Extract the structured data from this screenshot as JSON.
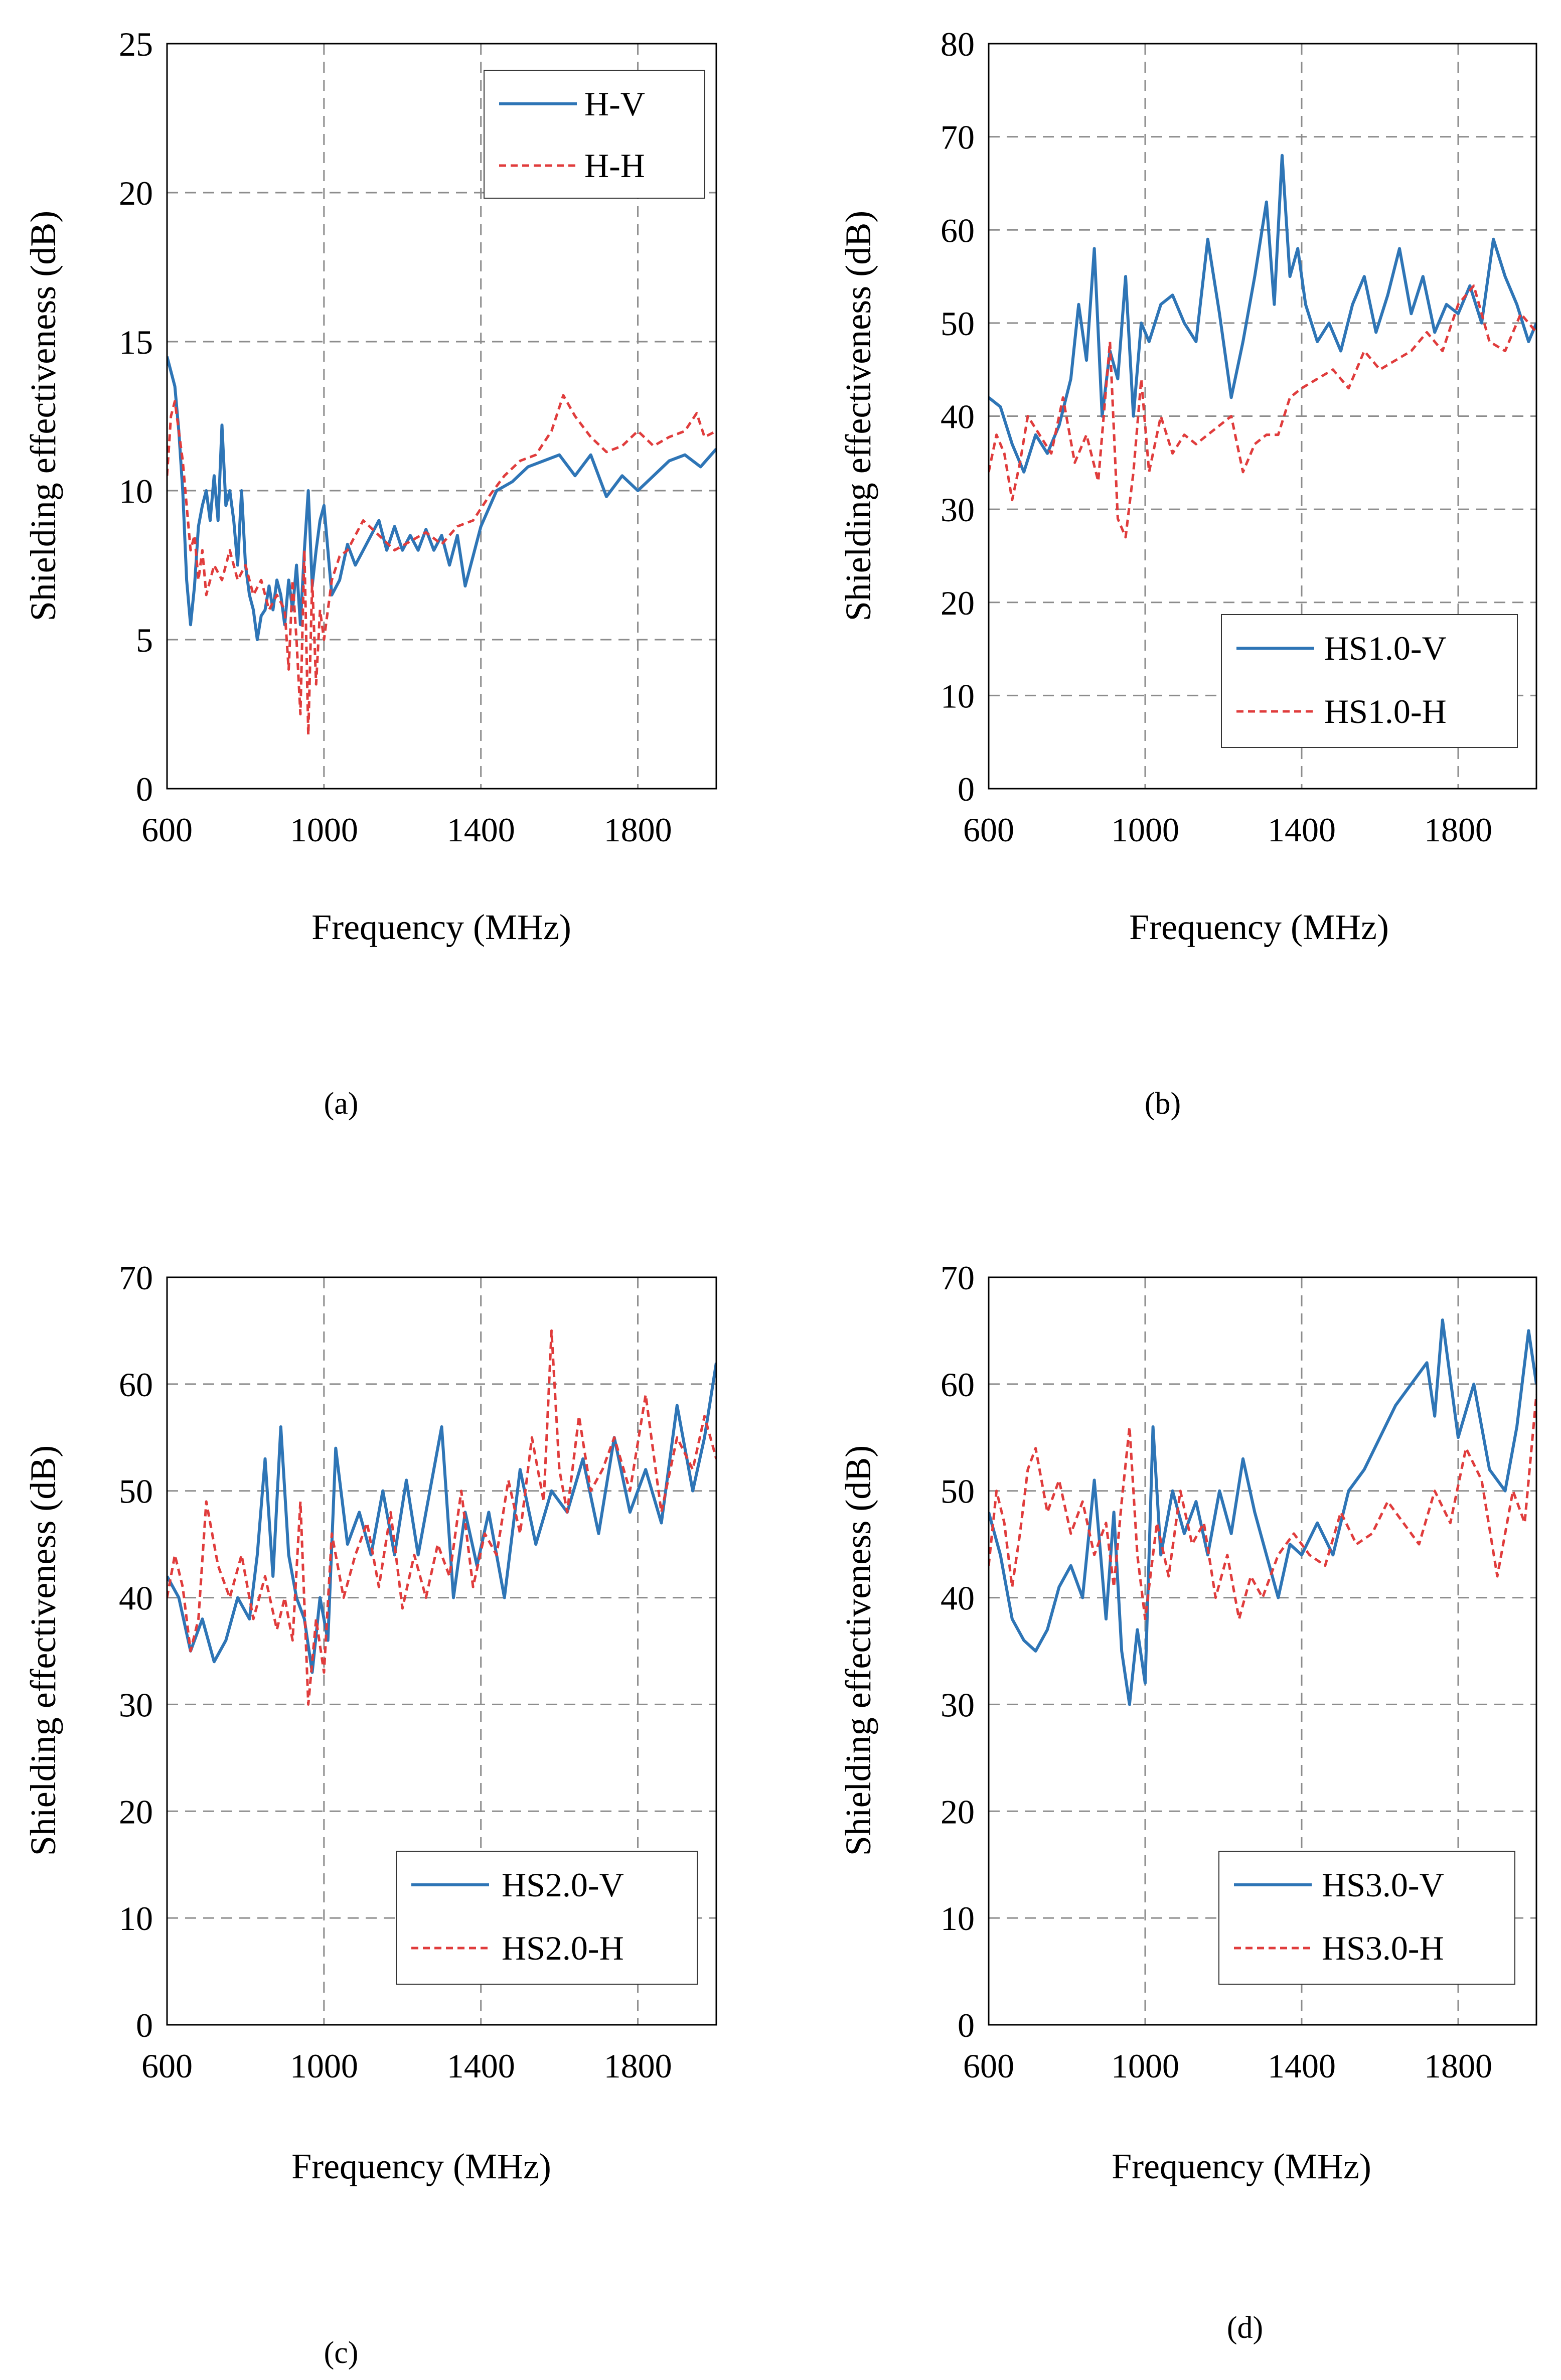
{
  "figure": {
    "panels": [
      "a",
      "b",
      "c",
      "d"
    ]
  },
  "colors": {
    "v_series": "#2E75B6",
    "h_series": "#E03C3C",
    "grid": "#8C8C8C",
    "axis": "#000000"
  },
  "chart_data": [
    {
      "id": "a",
      "caption": "(a)",
      "type": "line",
      "xlabel": "Frequency (MHz)",
      "ylabel": "Shielding effectiveness (dB)",
      "xlim": [
        600,
        2000
      ],
      "ylim": [
        0,
        25
      ],
      "xticks": [
        600,
        1000,
        1400,
        1800
      ],
      "xtick_labels": [
        "600",
        "1000",
        "1400",
        "1800"
      ],
      "yticks": [
        0,
        5,
        10,
        15,
        20,
        25
      ],
      "ytick_labels": [
        "0",
        "5",
        "10",
        "15",
        "20",
        "25"
      ],
      "grid": true,
      "legend_position": "top-right",
      "series": [
        {
          "name": "H-V",
          "style": "solid",
          "color": "#2E75B6",
          "x": [
            600,
            610,
            620,
            630,
            640,
            650,
            660,
            670,
            680,
            690,
            700,
            710,
            720,
            730,
            740,
            750,
            760,
            770,
            780,
            790,
            800,
            810,
            820,
            830,
            840,
            850,
            860,
            870,
            880,
            890,
            900,
            910,
            920,
            930,
            940,
            950,
            960,
            970,
            980,
            990,
            1000,
            1020,
            1040,
            1060,
            1080,
            1100,
            1120,
            1140,
            1160,
            1180,
            1200,
            1220,
            1240,
            1260,
            1280,
            1300,
            1320,
            1340,
            1360,
            1380,
            1400,
            1440,
            1480,
            1520,
            1560,
            1600,
            1640,
            1680,
            1720,
            1760,
            1800,
            1840,
            1880,
            1920,
            1960,
            2000
          ],
          "y": [
            14.5,
            14.0,
            13.5,
            12.0,
            10.0,
            7.0,
            5.5,
            6.8,
            8.8,
            9.5,
            10.0,
            9.0,
            10.5,
            9.0,
            12.2,
            9.5,
            10.0,
            9.0,
            7.5,
            10.0,
            7.5,
            6.5,
            6.0,
            5.0,
            5.8,
            6.0,
            6.8,
            6.0,
            7.0,
            6.5,
            5.5,
            7.0,
            6.0,
            7.5,
            5.5,
            8.0,
            10.0,
            6.8,
            8.0,
            9.0,
            9.5,
            6.5,
            7.0,
            8.2,
            7.5,
            8.0,
            8.5,
            9.0,
            8.0,
            8.8,
            8.0,
            8.5,
            8.0,
            8.7,
            8.0,
            8.5,
            7.5,
            8.5,
            6.8,
            7.8,
            8.8,
            10.0,
            10.3,
            10.8,
            11.0,
            11.2,
            10.5,
            11.2,
            9.8,
            10.5,
            10.0,
            10.5,
            11.0,
            11.2,
            10.8,
            11.4
          ]
        },
        {
          "name": "H-H",
          "style": "dashed",
          "color": "#E03C3C",
          "x": [
            600,
            610,
            620,
            630,
            640,
            650,
            660,
            670,
            680,
            690,
            700,
            720,
            740,
            760,
            780,
            800,
            820,
            840,
            860,
            880,
            900,
            910,
            920,
            930,
            940,
            950,
            960,
            970,
            980,
            990,
            1000,
            1020,
            1040,
            1060,
            1080,
            1100,
            1140,
            1180,
            1220,
            1260,
            1300,
            1340,
            1380,
            1420,
            1460,
            1500,
            1540,
            1580,
            1610,
            1640,
            1680,
            1720,
            1760,
            1800,
            1840,
            1880,
            1920,
            1950,
            1970,
            2000
          ],
          "y": [
            10.5,
            12.5,
            13.0,
            12.0,
            11.0,
            9.5,
            8.0,
            8.5,
            7.0,
            8.0,
            6.5,
            7.5,
            7.0,
            8.0,
            7.0,
            7.5,
            6.5,
            7.0,
            6.0,
            6.5,
            6.0,
            4.0,
            7.0,
            5.0,
            2.5,
            8.0,
            1.8,
            7.0,
            3.5,
            6.0,
            5.0,
            7.0,
            7.8,
            8.0,
            8.5,
            9.0,
            8.5,
            8.0,
            8.3,
            8.6,
            8.2,
            8.8,
            9.0,
            9.8,
            10.5,
            11.0,
            11.2,
            12.0,
            13.2,
            12.5,
            11.8,
            11.3,
            11.5,
            12.0,
            11.5,
            11.8,
            12.0,
            12.6,
            11.8,
            12.0
          ]
        }
      ]
    },
    {
      "id": "b",
      "caption": "(b)",
      "type": "line",
      "xlabel": "Frequency (MHz)",
      "ylabel": "Shielding effectiveness (dB)",
      "xlim": [
        600,
        2000
      ],
      "ylim": [
        0,
        80
      ],
      "xticks": [
        600,
        1000,
        1400,
        1800
      ],
      "xtick_labels": [
        "600",
        "1000",
        "1400",
        "1800"
      ],
      "yticks": [
        0,
        10,
        20,
        30,
        40,
        50,
        60,
        70,
        80
      ],
      "ytick_labels": [
        "0",
        "10",
        "20",
        "30",
        "40",
        "50",
        "60",
        "70",
        "80"
      ],
      "grid": true,
      "legend_position": "bottom-right",
      "series": [
        {
          "name": "HS1.0-V",
          "style": "solid",
          "color": "#2E75B6",
          "x": [
            600,
            630,
            660,
            690,
            720,
            750,
            780,
            810,
            830,
            850,
            870,
            890,
            910,
            930,
            950,
            970,
            990,
            1010,
            1040,
            1070,
            1100,
            1130,
            1160,
            1190,
            1220,
            1250,
            1280,
            1310,
            1330,
            1350,
            1370,
            1390,
            1410,
            1440,
            1470,
            1500,
            1530,
            1560,
            1590,
            1620,
            1650,
            1680,
            1710,
            1740,
            1770,
            1800,
            1830,
            1860,
            1890,
            1920,
            1950,
            1980,
            2000
          ],
          "y": [
            42,
            41,
            37,
            34,
            38,
            36,
            39,
            44,
            52,
            46,
            58,
            40,
            47,
            44,
            55,
            40,
            50,
            48,
            52,
            53,
            50,
            48,
            59,
            51,
            42,
            48,
            55,
            63,
            52,
            68,
            55,
            58,
            52,
            48,
            50,
            47,
            52,
            55,
            49,
            53,
            58,
            51,
            55,
            49,
            52,
            51,
            54,
            50,
            59,
            55,
            52,
            48,
            50
          ]
        },
        {
          "name": "HS1.0-H",
          "style": "dashed",
          "color": "#E03C3C",
          "x": [
            600,
            620,
            640,
            660,
            680,
            700,
            730,
            760,
            790,
            820,
            850,
            880,
            910,
            930,
            950,
            970,
            990,
            1010,
            1040,
            1070,
            1100,
            1130,
            1160,
            1190,
            1220,
            1250,
            1280,
            1310,
            1340,
            1370,
            1400,
            1440,
            1480,
            1520,
            1560,
            1600,
            1640,
            1680,
            1720,
            1760,
            1800,
            1840,
            1880,
            1920,
            1960,
            2000
          ],
          "y": [
            34,
            38,
            36,
            31,
            35,
            40,
            38,
            36,
            42,
            35,
            38,
            33,
            48,
            29,
            27,
            34,
            44,
            34,
            40,
            36,
            38,
            37,
            38,
            39,
            40,
            34,
            37,
            38,
            38,
            42,
            43,
            44,
            45,
            43,
            47,
            45,
            46,
            47,
            49,
            47,
            52,
            54,
            48,
            47,
            51,
            49
          ]
        }
      ]
    },
    {
      "id": "c",
      "caption": "(c)",
      "type": "line",
      "xlabel": "Frequency (MHz)",
      "ylabel": "Shielding effectiveness (dB)",
      "xlim": [
        600,
        2000
      ],
      "ylim": [
        0,
        70
      ],
      "xticks": [
        600,
        1000,
        1400,
        1800
      ],
      "xtick_labels": [
        "600",
        "1000",
        "1400",
        "1800"
      ],
      "yticks": [
        0,
        10,
        20,
        30,
        40,
        50,
        60,
        70
      ],
      "ytick_labels": [
        "0",
        "10",
        "20",
        "30",
        "40",
        "50",
        "60",
        "70"
      ],
      "grid": true,
      "legend_position": "bottom-right",
      "series": [
        {
          "name": "HS2.0-V",
          "style": "solid",
          "color": "#2E75B6",
          "x": [
            600,
            630,
            660,
            690,
            720,
            750,
            780,
            810,
            830,
            850,
            870,
            890,
            910,
            930,
            950,
            970,
            990,
            1010,
            1030,
            1060,
            1090,
            1120,
            1150,
            1180,
            1210,
            1240,
            1270,
            1300,
            1330,
            1360,
            1390,
            1420,
            1460,
            1500,
            1540,
            1580,
            1620,
            1660,
            1700,
            1740,
            1780,
            1820,
            1860,
            1900,
            1940,
            1970,
            2000
          ],
          "y": [
            42,
            40,
            35,
            38,
            34,
            36,
            40,
            38,
            44,
            53,
            42,
            56,
            44,
            40,
            38,
            33,
            40,
            36,
            54,
            45,
            48,
            44,
            50,
            44,
            51,
            44,
            50,
            56,
            40,
            48,
            43,
            48,
            40,
            52,
            45,
            50,
            48,
            53,
            46,
            55,
            48,
            52,
            47,
            58,
            50,
            55,
            62
          ]
        },
        {
          "name": "HS2.0-H",
          "style": "dashed",
          "color": "#E03C3C",
          "x": [
            600,
            620,
            640,
            660,
            680,
            700,
            730,
            760,
            790,
            820,
            850,
            880,
            900,
            920,
            940,
            960,
            980,
            1000,
            1020,
            1050,
            1080,
            1110,
            1140,
            1170,
            1200,
            1230,
            1260,
            1290,
            1320,
            1350,
            1380,
            1410,
            1440,
            1470,
            1500,
            1530,
            1560,
            1580,
            1600,
            1620,
            1650,
            1680,
            1710,
            1740,
            1780,
            1820,
            1860,
            1900,
            1940,
            1970,
            2000
          ],
          "y": [
            40,
            44,
            41,
            35,
            38,
            49,
            43,
            40,
            44,
            38,
            42,
            37,
            40,
            36,
            49,
            30,
            38,
            33,
            46,
            40,
            44,
            47,
            41,
            48,
            39,
            44,
            40,
            45,
            42,
            50,
            41,
            46,
            44,
            51,
            46,
            55,
            49,
            65,
            52,
            48,
            57,
            50,
            52,
            55,
            50,
            59,
            48,
            55,
            52,
            57,
            53
          ]
        }
      ]
    },
    {
      "id": "d",
      "caption": "(d)",
      "type": "line",
      "xlabel": "Frequency (MHz)",
      "ylabel": "Shielding effectiveness (dB)",
      "xlim": [
        600,
        2000
      ],
      "ylim": [
        0,
        70
      ],
      "xticks": [
        600,
        1000,
        1400,
        1800
      ],
      "xtick_labels": [
        "600",
        "1000",
        "1400",
        "1800"
      ],
      "yticks": [
        0,
        10,
        20,
        30,
        40,
        50,
        60,
        70
      ],
      "ytick_labels": [
        "0",
        "10",
        "20",
        "30",
        "40",
        "50",
        "60",
        "70"
      ],
      "grid": true,
      "legend_position": "bottom-right",
      "series": [
        {
          "name": "HS3.0-V",
          "style": "solid",
          "color": "#2E75B6",
          "x": [
            600,
            630,
            660,
            690,
            720,
            750,
            780,
            810,
            840,
            870,
            900,
            920,
            940,
            960,
            980,
            1000,
            1020,
            1040,
            1070,
            1100,
            1130,
            1160,
            1190,
            1220,
            1250,
            1280,
            1310,
            1340,
            1370,
            1400,
            1440,
            1480,
            1520,
            1560,
            1600,
            1640,
            1680,
            1720,
            1740,
            1760,
            1800,
            1840,
            1880,
            1920,
            1950,
            1980,
            2000
          ],
          "y": [
            48,
            44,
            38,
            36,
            35,
            37,
            41,
            43,
            40,
            51,
            38,
            48,
            35,
            30,
            37,
            32,
            56,
            44,
            50,
            46,
            49,
            44,
            50,
            46,
            53,
            48,
            44,
            40,
            45,
            44,
            47,
            44,
            50,
            52,
            55,
            58,
            60,
            62,
            57,
            66,
            55,
            60,
            52,
            50,
            56,
            65,
            60
          ]
        },
        {
          "name": "HS3.0-H",
          "style": "dashed",
          "color": "#E03C3C",
          "x": [
            600,
            620,
            640,
            660,
            680,
            700,
            720,
            750,
            780,
            810,
            840,
            870,
            900,
            920,
            940,
            960,
            980,
            1000,
            1030,
            1060,
            1090,
            1120,
            1150,
            1180,
            1210,
            1240,
            1270,
            1300,
            1340,
            1380,
            1420,
            1460,
            1500,
            1540,
            1580,
            1620,
            1660,
            1700,
            1740,
            1780,
            1820,
            1860,
            1900,
            1940,
            1970,
            2000
          ],
          "y": [
            43,
            50,
            47,
            41,
            46,
            52,
            54,
            48,
            51,
            46,
            49,
            44,
            47,
            41,
            49,
            56,
            44,
            38,
            47,
            42,
            50,
            45,
            47,
            40,
            44,
            38,
            42,
            40,
            44,
            46,
            44,
            43,
            48,
            45,
            46,
            49,
            47,
            45,
            50,
            47,
            54,
            51,
            42,
            50,
            47,
            59
          ]
        }
      ]
    }
  ]
}
